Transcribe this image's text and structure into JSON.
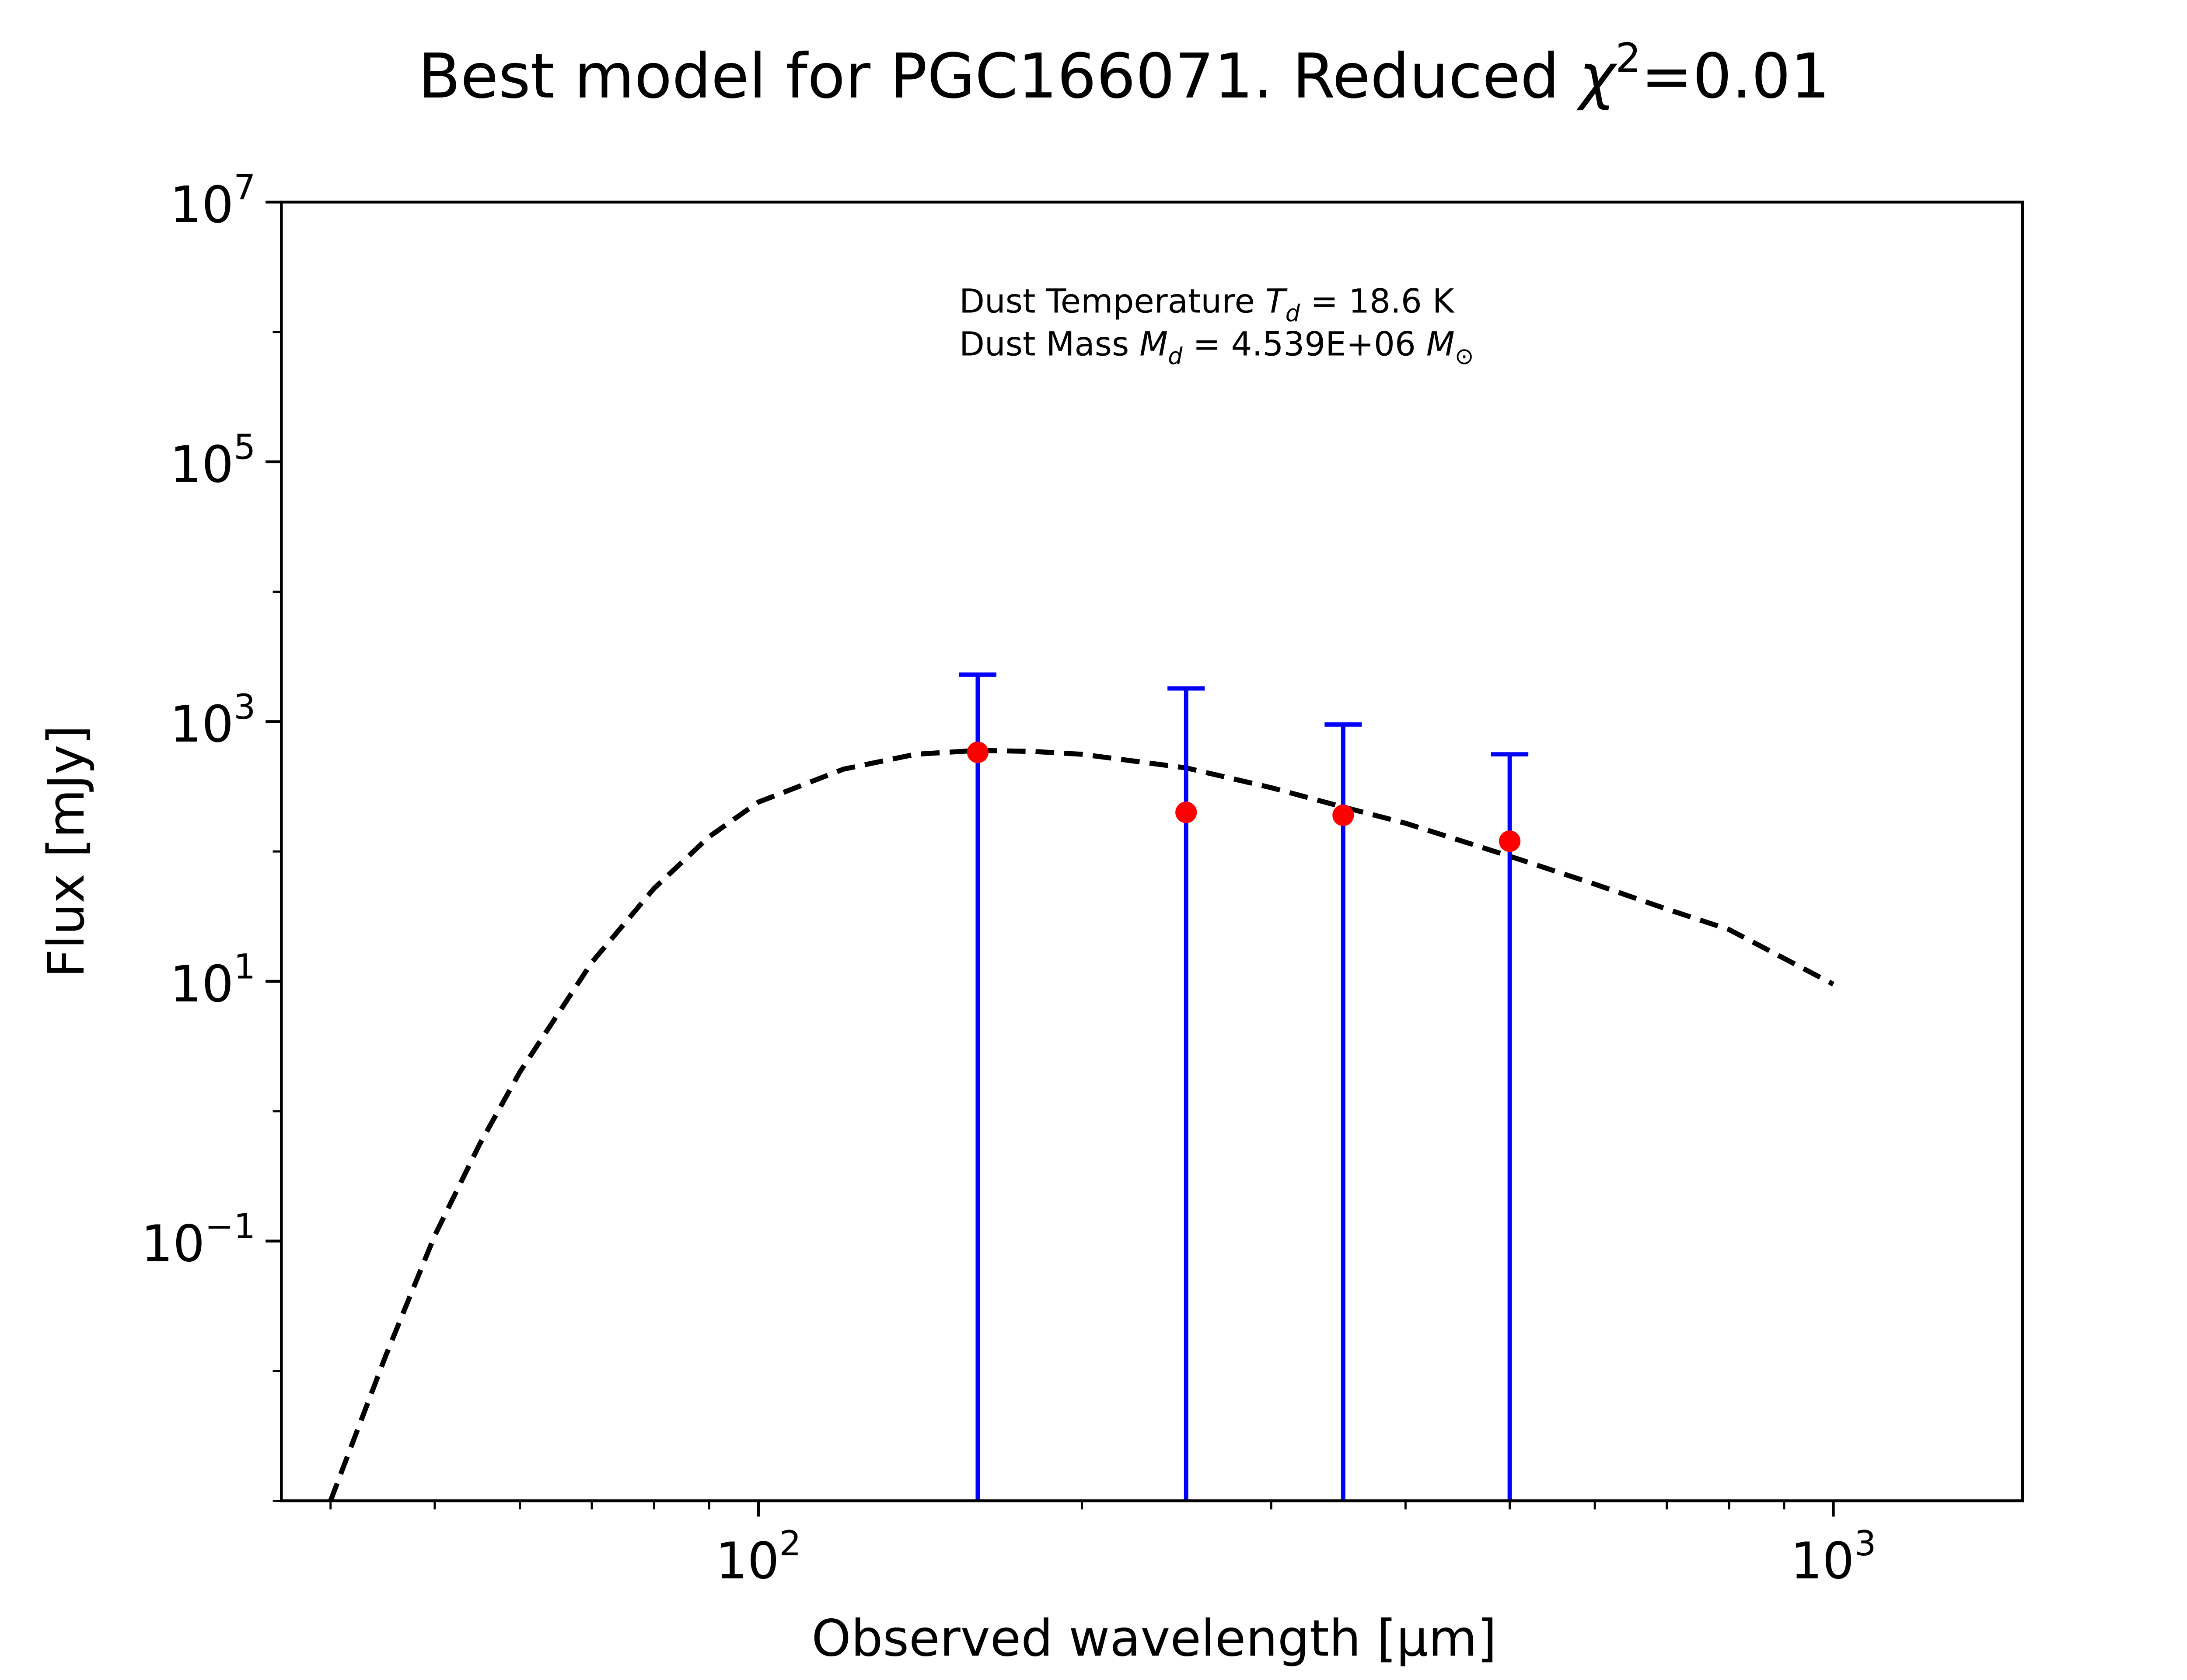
{
  "chart_data": {
    "type": "scatter",
    "title_prefix": "Best model for PGC166071. Reduced ",
    "title_chi": "χ",
    "title_chi_exp": "2",
    "title_suffix": "=0.01",
    "xlabel": "Observed wavelength [μm]",
    "ylabel": "Flux [mJy]",
    "x_scale": "log",
    "y_scale": "log",
    "xlim": [
      36,
      1500
    ],
    "ylim": [
      0.001,
      10000000
    ],
    "x_ticks": [
      {
        "value": 100,
        "base": "10",
        "exp": "2"
      },
      {
        "value": 1000,
        "base": "10",
        "exp": "3"
      }
    ],
    "y_ticks": [
      {
        "value": 0.1,
        "base": "10",
        "exp": "−1"
      },
      {
        "value": 10,
        "base": "10",
        "exp": "1"
      },
      {
        "value": 1000,
        "base": "10",
        "exp": "3"
      },
      {
        "value": 100000,
        "base": "10",
        "exp": "5"
      },
      {
        "value": 10000000,
        "base": "10",
        "exp": "7"
      }
    ],
    "annotation": {
      "line1_prefix": "Dust Temperature ",
      "line1_sym": "T",
      "line1_sub": "d",
      "line1_suffix": " = 18.6 K",
      "line2_prefix": "Dust Mass ",
      "line2_sym": "M",
      "line2_sub": "d",
      "line2_mid": " = 4.539E+06 ",
      "line2_unit": "M",
      "line2_unit_sub": "⊙"
    },
    "series": [
      {
        "type": "line",
        "style": "dashed",
        "color": "#000000",
        "x": [
          40,
          45,
          50,
          55,
          60,
          70,
          80,
          90,
          100,
          120,
          140,
          160,
          180,
          200,
          250,
          300,
          350,
          400,
          500,
          600,
          700,
          800,
          1000
        ],
        "y": [
          0.00085,
          0.013,
          0.11,
          0.55,
          2.0,
          14,
          52,
          130,
          240,
          430,
          560,
          600,
          590,
          560,
          440,
          310,
          220,
          165,
          92,
          56,
          36,
          25,
          9.5
        ]
      },
      {
        "type": "errorbar",
        "marker_color": "#ff0000",
        "error_color": "#0000ff",
        "x": [
          160,
          250,
          350,
          500
        ],
        "y": [
          580,
          200,
          190,
          120
        ],
        "y_upper": [
          2300,
          1800,
          950,
          560
        ],
        "y_lower": [
          0.001,
          0.001,
          0.001,
          0.001
        ]
      }
    ]
  }
}
